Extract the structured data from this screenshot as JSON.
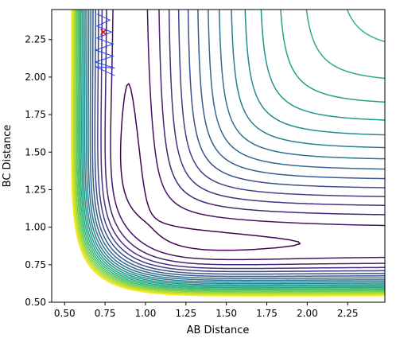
{
  "chart_data": {
    "type": "contour",
    "title": "",
    "xlabel": "AB Distance",
    "ylabel": "BC Distance",
    "xlim": [
      0.42,
      2.48
    ],
    "ylim": [
      0.5,
      2.45
    ],
    "xticks": [
      0.5,
      0.75,
      1.0,
      1.25,
      1.5,
      1.75,
      2.0,
      2.25
    ],
    "xtick_labels": [
      "0.50",
      "0.75",
      "1.00",
      "1.25",
      "1.50",
      "1.75",
      "2.00",
      "2.25"
    ],
    "yticks": [
      0.5,
      0.75,
      1.0,
      1.25,
      1.5,
      1.75,
      2.0,
      2.25
    ],
    "ytick_labels": [
      "0.50",
      "0.75",
      "1.00",
      "1.25",
      "1.50",
      "1.75",
      "2.00",
      "2.25"
    ],
    "surface": {
      "description": "LEPS-like potential energy surface for A + BC -> AB + C",
      "levels": 22,
      "colormap": "viridis"
    },
    "trajectory": {
      "color": "#1f3fff",
      "start": [
        0.74,
        2.3
      ],
      "points": [
        [
          0.7,
          2.42
        ],
        [
          0.78,
          2.38
        ],
        [
          0.7,
          2.34
        ],
        [
          0.79,
          2.3
        ],
        [
          0.7,
          2.26
        ],
        [
          0.8,
          2.22
        ],
        [
          0.69,
          2.18
        ],
        [
          0.8,
          2.14
        ],
        [
          0.69,
          2.1
        ],
        [
          0.81,
          2.06
        ],
        [
          0.69,
          2.07
        ],
        [
          0.81,
          2.01
        ]
      ]
    },
    "start_marker": {
      "x": 0.74,
      "y": 2.3,
      "symbol": "x",
      "color": "#ff0000"
    }
  }
}
